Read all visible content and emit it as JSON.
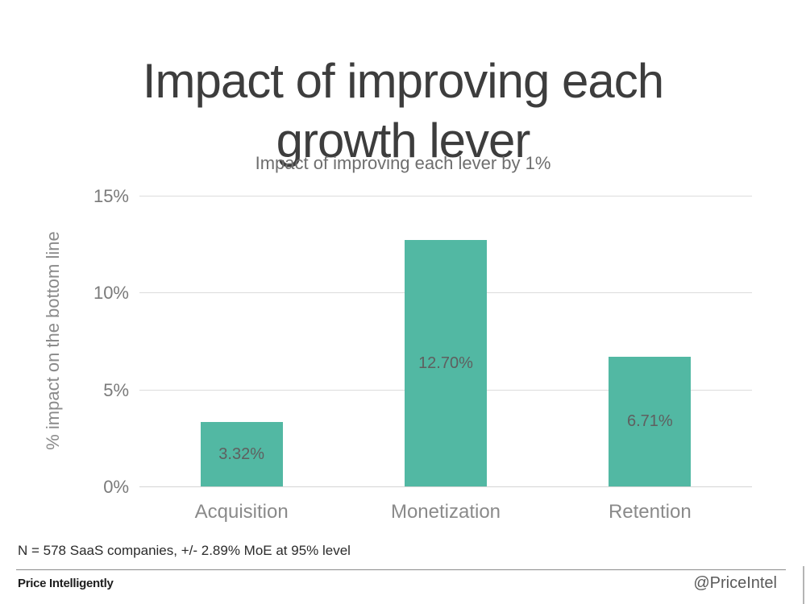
{
  "title": {
    "line1": "Impact of improving each",
    "line2": "growth lever"
  },
  "chart_data": {
    "type": "bar",
    "title": "Impact of improving each lever by 1%",
    "categories": [
      "Acquisition",
      "Monetization",
      "Retention"
    ],
    "values": [
      3.32,
      12.7,
      6.71
    ],
    "value_labels": [
      "3.32%",
      "12.70%",
      "6.71%"
    ],
    "xlabel": "",
    "ylabel": "% impact on the bottom line",
    "ylim": [
      0,
      15
    ],
    "yticks": [
      "0%",
      "5%",
      "10%",
      "15%"
    ],
    "grid": true,
    "legend_position": "none",
    "bar_color": "#52b8a3",
    "gridline_color": "#dcdcdc"
  },
  "footer": {
    "note": "N = 578 SaaS companies, +/- 2.89% MoE at 95% level",
    "brand": "Price Intelligently",
    "handle": "@PriceIntel"
  }
}
